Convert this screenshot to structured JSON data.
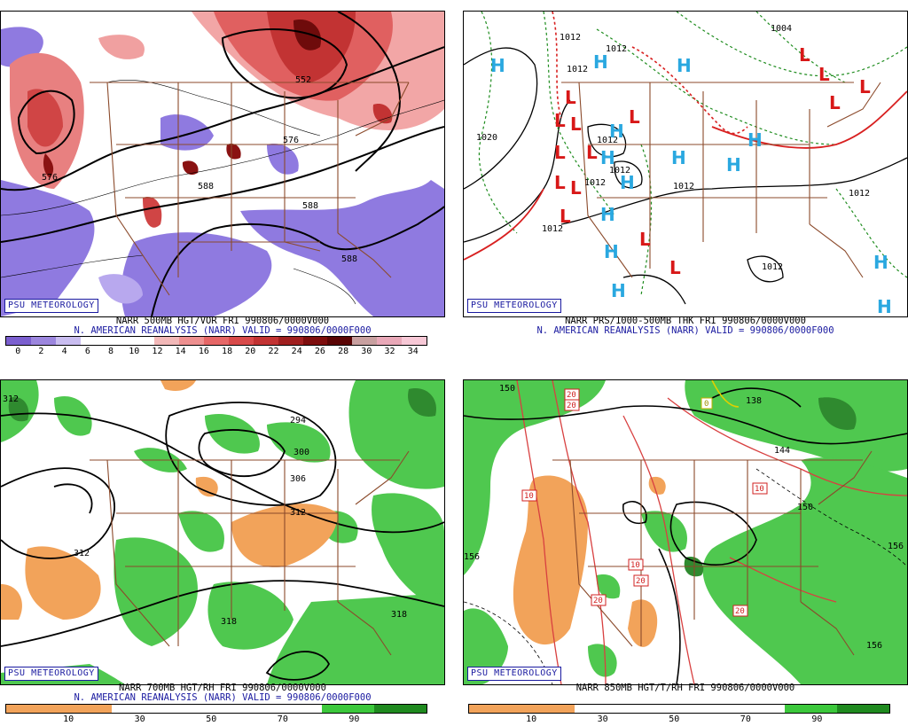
{
  "badge_text": "PSU METEOROLOGY",
  "panels": [
    {
      "id": "vort500",
      "caption_line1": "NARR 500MB HGT/VOR FRI 990806/0000V000",
      "caption_line2": "N. AMERICAN REANALYSIS (NARR) VALID = 990806/0000F000",
      "contour_labels": [
        "552",
        "576",
        "588",
        "588",
        "576",
        "588"
      ],
      "colorbar": {
        "colors": [
          "#7b5fcf",
          "#9c86de",
          "#c9bdf0",
          "#ffffff",
          "#ffffff",
          "#ffffff",
          "#f2b8b8",
          "#ee9090",
          "#e66767",
          "#d84a4a",
          "#c23333",
          "#a01f1f",
          "#7d0d0d",
          "#5a0505",
          "#c8a0a0",
          "#e9a8b8",
          "#f7c8d6"
        ],
        "ticks": [
          "0",
          "2",
          "4",
          "6",
          "8",
          "10",
          "12",
          "14",
          "16",
          "18",
          "20",
          "22",
          "24",
          "26",
          "28",
          "30",
          "32",
          "34"
        ]
      }
    },
    {
      "id": "prs1000",
      "caption_line1": "NARR PRS/1000-500MB THK FRI 990806/0000V000",
      "caption_line2": "N. AMERICAN REANALYSIS (NARR) VALID = 990806/0000F000",
      "contour_labels": [
        "1012",
        "1012",
        "1012",
        "1004",
        "1020",
        "1012",
        "1012",
        "1012",
        "1012",
        "1012",
        "1012",
        "1012"
      ],
      "high_symbol": "H",
      "low_symbol": "L"
    },
    {
      "id": "rh700",
      "caption_line1": "NARR 700MB HGT/RH FRI 990806/0000V000",
      "caption_line2": "N. AMERICAN REANALYSIS (NARR) VALID = 990806/0000F000",
      "contour_labels": [
        "312",
        "294",
        "300",
        "306",
        "312",
        "312",
        "318",
        "318"
      ],
      "colorbar": {
        "colors": [
          "#f2a35a",
          "#f2a35a",
          "#ffffff",
          "#ffffff",
          "#ffffff",
          "#ffffff",
          "#3cc83c",
          "#1f8a1f"
        ],
        "ticks": [
          "10",
          "30",
          "50",
          "70",
          "90"
        ]
      }
    },
    {
      "id": "t850",
      "caption_line1": "NARR 850MB HGT/T/RH FRI 990806/0000V000",
      "caption_line2": "",
      "contour_labels": [
        "150",
        "138",
        "144",
        "150",
        "156",
        "156",
        "156"
      ],
      "temp_labels": [
        "20",
        "10",
        "10",
        "10",
        "20",
        "20",
        "20",
        "20",
        "0"
      ],
      "colorbar": {
        "colors": [
          "#f2a35a",
          "#f2a35a",
          "#ffffff",
          "#ffffff",
          "#ffffff",
          "#ffffff",
          "#3cc83c",
          "#1f8a1f"
        ],
        "ticks": [
          "10",
          "30",
          "50",
          "70",
          "90"
        ]
      }
    }
  ]
}
